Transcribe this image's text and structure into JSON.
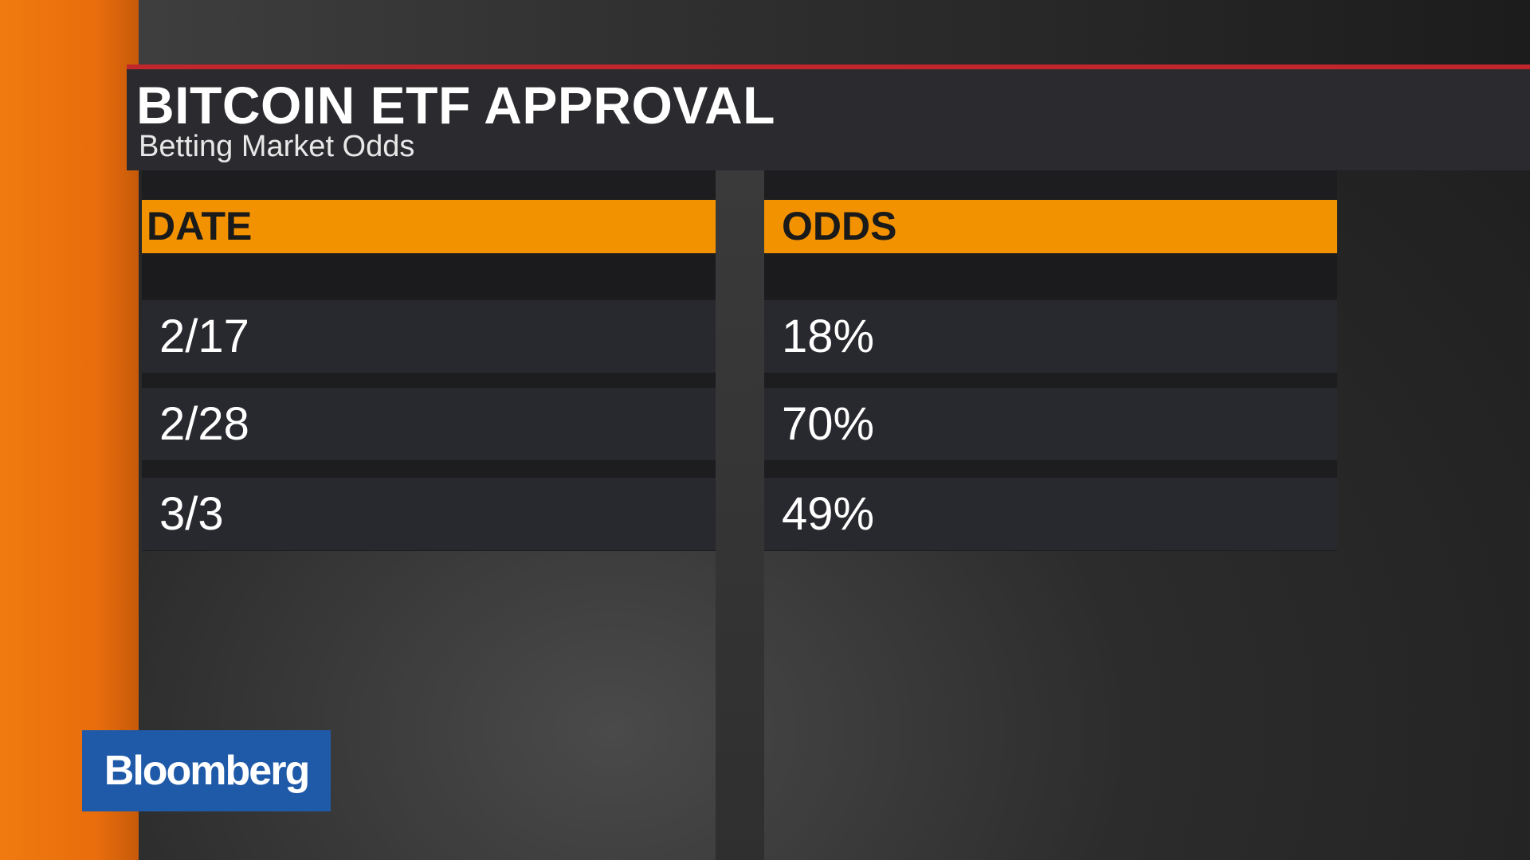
{
  "header": {
    "title": "BITCOIN ETF APPROVAL",
    "subtitle": "Betting Market Odds"
  },
  "table": {
    "columns": [
      "DATE",
      "ODDS"
    ],
    "rows": [
      [
        "2/17",
        "18%"
      ],
      [
        "2/28",
        "70%"
      ],
      [
        "3/3",
        "49%"
      ]
    ]
  },
  "logo": "Bloomberg"
}
